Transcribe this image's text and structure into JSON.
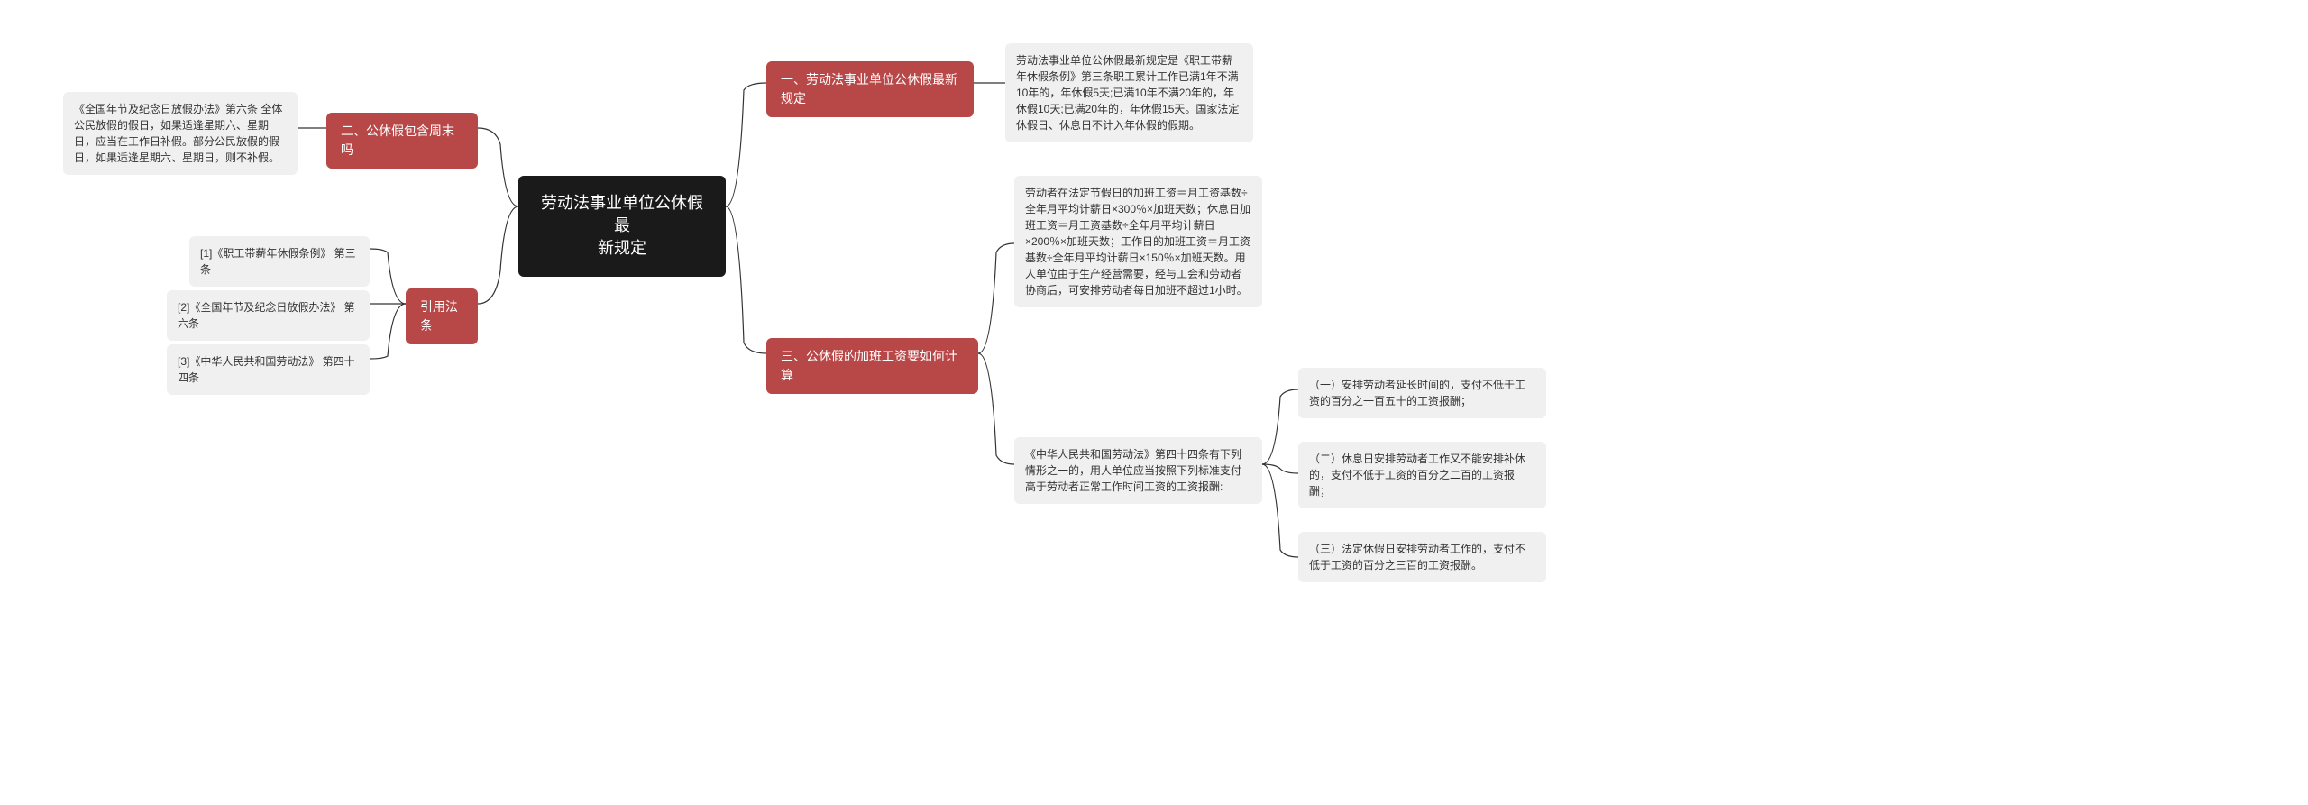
{
  "root": {
    "label": "劳动法事业单位公休假最\n新规定"
  },
  "left": {
    "branch1": {
      "label": "二、公休假包含周末吗",
      "leaf": "《全国年节及纪念日放假办法》第六条 全体公民放假的假日，如果适逢星期六、星期日，应当在工作日补假。部分公民放假的假日，如果适逢星期六、星期日，则不补假。"
    },
    "branch2": {
      "label": "引用法条",
      "leaves": [
        "[1]《职工带薪年休假条例》 第三条",
        "[2]《全国年节及纪念日放假办法》 第六条",
        "[3]《中华人民共和国劳动法》 第四十四条"
      ]
    }
  },
  "right": {
    "branch1": {
      "label": "一、劳动法事业单位公休假最新规定",
      "leaf": "劳动法事业单位公休假最新规定是《职工带薪年休假条例》第三条职工累计工作已满1年不满10年的，年休假5天;已满10年不满20年的，年休假10天;已满20年的，年休假15天。国家法定休假日、休息日不计入年休假的假期。"
    },
    "branch2": {
      "label": "三、公休假的加班工资要如何计算",
      "leaf1": "劳动者在法定节假日的加班工资＝月工资基数÷全年月平均计薪日×300％×加班天数；休息日加班工资＝月工资基数÷全年月平均计薪日×200％×加班天数；工作日的加班工资＝月工资基数÷全年月平均计薪日×150％×加班天数。用人单位由于生产经营需要，经与工会和劳动者协商后，可安排劳动者每日加班不超过1小时。",
      "leaf2": "《中华人民共和国劳动法》第四十四条有下列情形之一的，用人单位应当按照下列标准支付高于劳动者正常工作时间工资的工资报酬:",
      "subleaves": [
        "（一）安排劳动者延长时间的，支付不低于工资的百分之一百五十的工资报酬；",
        "（二）休息日安排劳动者工作又不能安排补休的，支付不低于工资的百分之二百的工资报酬；",
        "（三）法定休假日安排劳动者工作的，支付不低于工资的百分之三百的工资报酬。"
      ]
    }
  },
  "colors": {
    "root_bg": "#1a1a1a",
    "root_fg": "#ffffff",
    "branch_bg": "#b84848",
    "branch_fg": "#ffffff",
    "leaf_bg": "#f0f0f0",
    "leaf_fg": "#333333",
    "connector": "#333333"
  }
}
